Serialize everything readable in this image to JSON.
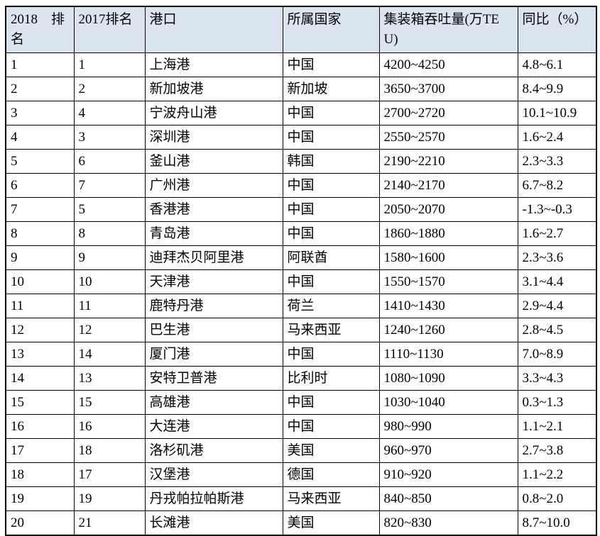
{
  "table": {
    "colors": {
      "header_bg": "#dbe5f1",
      "border": "#000000",
      "text": "#000000"
    },
    "columns": [
      {
        "key": "rank-2018",
        "label": "2018 排名"
      },
      {
        "key": "rank-2017",
        "label": "2017排名"
      },
      {
        "key": "port",
        "label": "港口"
      },
      {
        "key": "country",
        "label": "所属国家"
      },
      {
        "key": "throughput",
        "label": "集装箱吞吐量(万TEU)"
      },
      {
        "key": "yoy",
        "label": "同比（%）"
      }
    ],
    "rows": [
      [
        "1",
        "1",
        "上海港",
        "中国",
        "4200~4250",
        "4.8~6.1"
      ],
      [
        "2",
        "2",
        "新加坡港",
        "新加坡",
        "3650~3700",
        "8.4~9.9"
      ],
      [
        "3",
        "4",
        "宁波舟山港",
        "中国",
        "2700~2720",
        "10.1~10.9"
      ],
      [
        "4",
        "3",
        "深圳港",
        "中国",
        "2550~2570",
        "1.6~2.4"
      ],
      [
        "5",
        "6",
        "釜山港",
        "韩国",
        "2190~2210",
        "2.3~3.3"
      ],
      [
        "6",
        "7",
        "广州港",
        "中国",
        "2140~2170",
        "6.7~8.2"
      ],
      [
        "7",
        "5",
        "香港港",
        "中国",
        "2050~2070",
        "-1.3~-0.3"
      ],
      [
        "8",
        "8",
        "青岛港",
        "中国",
        "1860~1880",
        "1.6~2.7"
      ],
      [
        "9",
        "9",
        "迪拜杰贝阿里港",
        "阿联酋",
        "1580~1600",
        "2.3~3.6"
      ],
      [
        "10",
        "10",
        "天津港",
        "中国",
        "1550~1570",
        "3.1~4.4"
      ],
      [
        "11",
        "11",
        "鹿特丹港",
        "荷兰",
        "1410~1430",
        "2.9~4.4"
      ],
      [
        "12",
        "12",
        "巴生港",
        "马来西亚",
        "1240~1260",
        "2.8~4.5"
      ],
      [
        "13",
        "14",
        "厦门港",
        "中国",
        "1110~1130",
        "7.0~8.9"
      ],
      [
        "14",
        "13",
        "安特卫普港",
        "比利时",
        "1080~1090",
        "3.3~4.3"
      ],
      [
        "15",
        "15",
        "高雄港",
        "中国",
        "1030~1040",
        "0.3~1.3"
      ],
      [
        "16",
        "16",
        "大连港",
        "中国",
        "980~990",
        "1.1~2.1"
      ],
      [
        "17",
        "18",
        "洛杉矶港",
        "美国",
        "960~970",
        "2.7~3.8"
      ],
      [
        "18",
        "17",
        "汉堡港",
        "德国",
        "910~920",
        "1.1~2.2"
      ],
      [
        "19",
        "19",
        "丹戎帕拉帕斯港",
        "马来西亚",
        "840~850",
        "0.8~2.0"
      ],
      [
        "20",
        "21",
        "长滩港",
        "美国",
        "820~830",
        "8.7~10.0"
      ]
    ]
  }
}
